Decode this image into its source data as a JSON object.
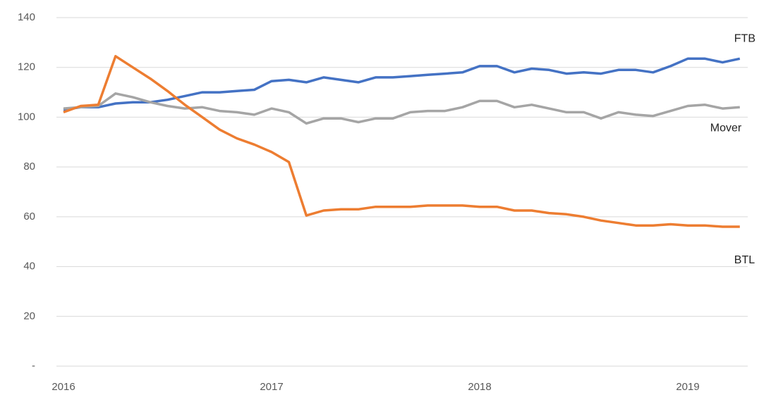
{
  "chart_data": {
    "type": "line",
    "x": [
      2016,
      2016.083,
      2016.167,
      2016.25,
      2016.333,
      2016.417,
      2016.5,
      2016.583,
      2016.667,
      2016.75,
      2016.833,
      2016.917,
      2017,
      2017.083,
      2017.167,
      2017.25,
      2017.333,
      2017.417,
      2017.5,
      2017.583,
      2017.667,
      2017.75,
      2017.833,
      2017.917,
      2018,
      2018.083,
      2018.167,
      2018.25,
      2018.333,
      2018.417,
      2018.5,
      2018.583,
      2018.667,
      2018.75,
      2018.833,
      2018.917,
      2019,
      2019.083,
      2019.167,
      2019.25
    ],
    "series": [
      {
        "name": "FTB",
        "color": "#4472c4",
        "values": [
          103,
          104,
          104,
          105.5,
          106,
          106,
          107,
          108.5,
          110,
          110,
          110.5,
          111,
          114.5,
          115,
          114,
          116,
          115,
          114,
          116,
          116,
          116.5,
          117,
          117.5,
          118,
          120.5,
          120.5,
          118,
          119.5,
          119,
          117.5,
          118,
          117.5,
          119,
          119,
          118,
          120.5,
          123.5,
          123.5,
          122,
          123.5
        ]
      },
      {
        "name": "Mover",
        "color": "#a5a5a5",
        "values": [
          103.5,
          104,
          104.5,
          109.5,
          108,
          106,
          104.5,
          103.5,
          104,
          102.5,
          102,
          101,
          103.5,
          102,
          97.5,
          99.5,
          99.5,
          98,
          99.5,
          99.5,
          102,
          102.5,
          102.5,
          104,
          106.5,
          106.5,
          104,
          105,
          103.5,
          102,
          102,
          99.5,
          102,
          101,
          100.5,
          102.5,
          104.5,
          105,
          103.5,
          104
        ]
      },
      {
        "name": "BTL",
        "color": "#ed7d31",
        "values": [
          102,
          104.5,
          105,
          124.5,
          120,
          115.5,
          110.5,
          105,
          100,
          95,
          91.5,
          89,
          86,
          82,
          60.5,
          62.5,
          63,
          63,
          64,
          64,
          64,
          64.5,
          64.5,
          64.5,
          64,
          64,
          62.5,
          62.5,
          61.5,
          61,
          60,
          58.5,
          57.5,
          56.5,
          56.5,
          57,
          56.5,
          56.5,
          56,
          56
        ]
      }
    ],
    "xlim": [
      2015.966,
      2019.288
    ],
    "xticks": [
      2016,
      2017,
      2018,
      2019
    ],
    "ylim": [
      0,
      140
    ],
    "yticks": [
      {
        "value": 0,
        "label": "-"
      },
      20,
      40,
      60,
      80,
      100,
      120,
      140
    ],
    "grid": true
  }
}
